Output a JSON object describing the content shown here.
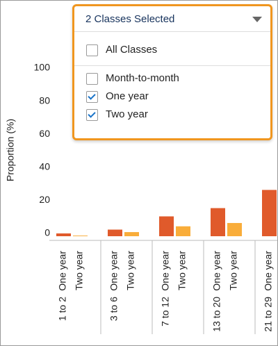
{
  "chart_data": {
    "type": "bar",
    "y_label": "Proportion (%)",
    "categories": [
      "1 to 2",
      "3 to 6",
      "7 to 12",
      "13 to 20",
      "21 to 29"
    ],
    "series": [
      {
        "name": "One year",
        "color": "#e05a2b",
        "values": [
          1.7,
          4,
          12,
          17,
          28
        ]
      },
      {
        "name": "Two year",
        "color": "#f9ad3a",
        "values": [
          0.4,
          2.5,
          6,
          8,
          null
        ]
      }
    ],
    "ylim": [
      0,
      100
    ],
    "yticks": [
      0,
      20,
      40,
      60,
      80,
      100
    ]
  },
  "dropdown": {
    "label": "2 Classes Selected",
    "options": [
      {
        "label": "All Classes",
        "checked": false
      },
      {
        "label": "Month-to-month",
        "checked": false
      },
      {
        "label": "One year",
        "checked": true
      },
      {
        "label": "Two year",
        "checked": true
      }
    ]
  }
}
